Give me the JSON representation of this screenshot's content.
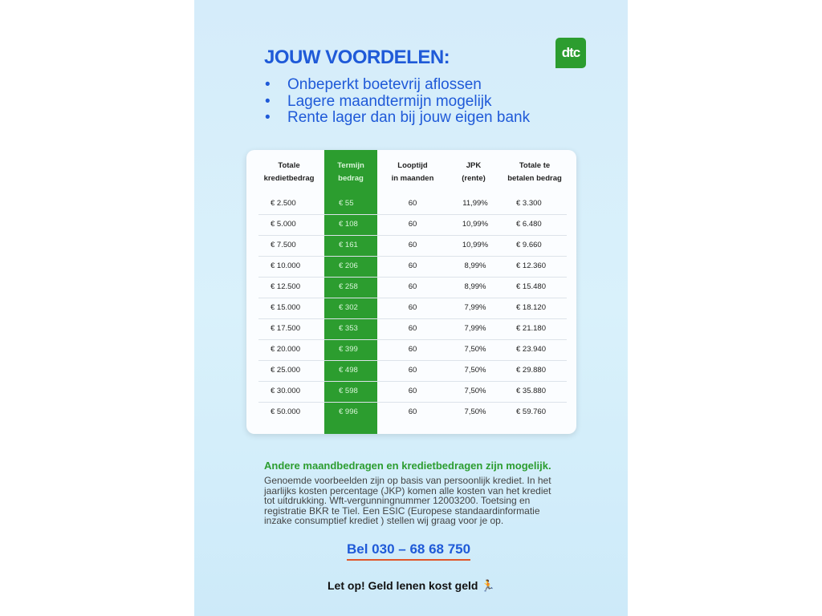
{
  "header": {
    "title": "JOUW VOORDELEN:",
    "logo_text": "dtc",
    "brand_color": "#2c9d2f",
    "accent_color": "#1f5ad8"
  },
  "benefits": [
    "Onbeperkt boetevrij aflossen",
    "Lagere maandtermijn mogelijk",
    "Rente lager dan bij jouw eigen bank"
  ],
  "table": {
    "headers": [
      [
        "Totale",
        "kredietbedrag"
      ],
      [
        "Termijn",
        "bedrag"
      ],
      [
        "Looptijd",
        "in maanden"
      ],
      [
        "JPK",
        "(rente)"
      ],
      [
        "Totale te",
        "betalen bedrag"
      ]
    ],
    "rows": [
      [
        "€ 2.500",
        "€ 55",
        "60",
        "11,99%",
        "€ 3.300"
      ],
      [
        "€ 5.000",
        "€ 108",
        "60",
        "10,99%",
        "€ 6.480"
      ],
      [
        "€ 7.500",
        "€ 161",
        "60",
        "10,99%",
        "€ 9.660"
      ],
      [
        "€ 10.000",
        "€ 206",
        "60",
        "8,99%",
        "€ 12.360"
      ],
      [
        "€ 12.500",
        "€ 258",
        "60",
        "8,99%",
        "€ 15.480"
      ],
      [
        "€ 15.000",
        "€ 302",
        "60",
        "7,99%",
        "€ 18.120"
      ],
      [
        "€ 17.500",
        "€ 353",
        "60",
        "7,99%",
        "€ 21.180"
      ],
      [
        "€ 20.000",
        "€ 399",
        "60",
        "7,50%",
        "€ 23.940"
      ],
      [
        "€ 25.000",
        "€ 498",
        "60",
        "7,50%",
        "€ 29.880"
      ],
      [
        "€ 30.000",
        "€ 598",
        "60",
        "7,50%",
        "€ 35.880"
      ],
      [
        "€ 50.000",
        "€ 996",
        "60",
        "7,50%",
        "€ 59.760"
      ]
    ]
  },
  "other_amounts": "Andere maandbedragen en kredietbedragen zijn mogelijk.",
  "disclaimer": "Genoemde voorbeelden zijn op basis van persoonlijk krediet. In het jaarlijks kosten percentage (JKP) komen alle kosten van het krediet tot uitdrukking. Wft-vergunningnummer 12003200. Toetsing en registratie BKR te Tiel. Een ESIC (Europese standaardinformatie inzake consumptief krediet ) stellen wij graag voor je op.",
  "phone": "Bel 030 – 68 68 750",
  "warning": "Let op! Geld lenen kost geld",
  "warning_icon": "running-man-icon"
}
